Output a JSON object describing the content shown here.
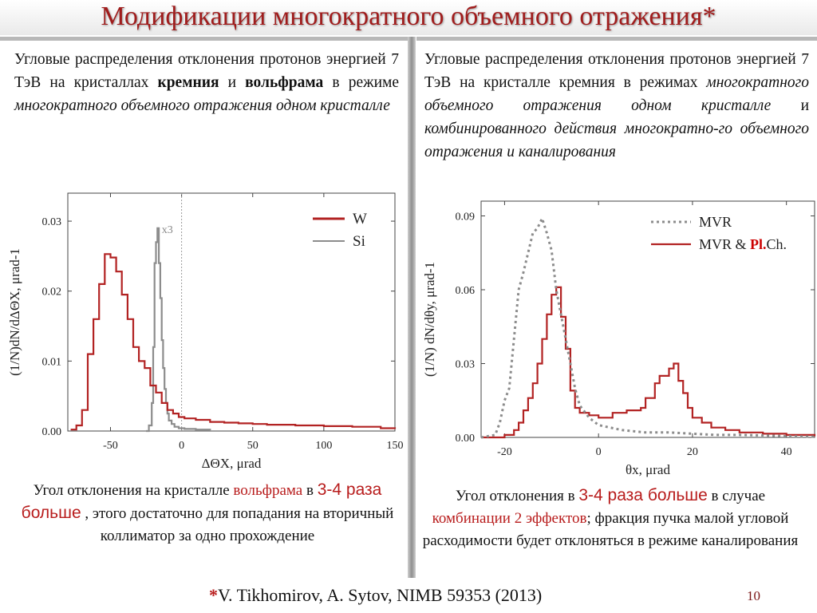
{
  "slide": {
    "title": "Модификации многократного объемного отражения*",
    "left": {
      "desc_1": "Угловые распределения отклонения протонов энергией 7 ТэВ на кристаллах ",
      "desc_b1": "кремния",
      "desc_2": " и ",
      "desc_b2": "вольфрама",
      "desc_3": " в режиме ",
      "desc_i1": "многократного объемного отражения одном кристалле",
      "cap_1": "Угол отклонения на кристалле ",
      "cap_r1": "вольфрама",
      "cap_2": " в ",
      "cap_r2": "3-4 раза больше",
      "cap_3": " , этого достаточно для попадания на вторичный коллиматор за одно прохождение"
    },
    "right": {
      "desc_1": "Угловые распределения отклонения протонов энергией 7 ТэВ на кристалле кремния в режимах ",
      "desc_i1": "многократного объемного отражения одном кристалле",
      "desc_2": " и ",
      "desc_i2": "комбинированного действия многократно-го объемного отражения и каналирования",
      "cap_1": "Угол отклонения в ",
      "cap_r1": "3-4 раза больше",
      "cap_2": " в случае ",
      "cap_r2": "комбинации 2 эффектов",
      "cap_3": "; фракция пучка малой угловой расходимости будет отклоняться в режиме каналирования"
    },
    "citation_star": "*",
    "citation": "V. Tikhomirov, A. Sytov,  NIMB 59353  (2013)",
    "page_number": "10"
  },
  "chart_data": [
    {
      "type": "line",
      "ylabel": "(1/N)dN/dΔΘX, μrad-1",
      "xlabel": "ΔΘX, μrad",
      "xlim": [
        -80,
        150
      ],
      "ylim": [
        0,
        0.034
      ],
      "xticks": [
        "-50",
        "0",
        "50",
        "100",
        "150"
      ],
      "xtick_values": [
        -50,
        0,
        50,
        100,
        150
      ],
      "yticks": [
        "0.00",
        "0.01",
        "0.02",
        "0.03"
      ],
      "ytick_values": [
        0,
        0.01,
        0.02,
        0.03
      ],
      "annotation": "x3",
      "series": [
        {
          "name": "W",
          "color": "#b22222",
          "style": "step",
          "x": [
            -78,
            -74,
            -70,
            -66,
            -62,
            -58,
            -54,
            -50,
            -46,
            -42,
            -38,
            -34,
            -30,
            -26,
            -22,
            -18,
            -14,
            -10,
            -6,
            -2,
            2,
            10,
            20,
            30,
            40,
            50,
            60,
            70,
            80,
            90,
            100,
            110,
            120,
            130,
            140,
            150
          ],
          "y": [
            0.0002,
            0.0008,
            0.003,
            0.011,
            0.016,
            0.021,
            0.0253,
            0.0248,
            0.0228,
            0.0195,
            0.016,
            0.012,
            0.01,
            0.009,
            0.0065,
            0.0055,
            0.004,
            0.003,
            0.0025,
            0.002,
            0.0018,
            0.0016,
            0.0013,
            0.0012,
            0.0011,
            0.001,
            0.0009,
            0.0009,
            0.0008,
            0.0008,
            0.0007,
            0.0007,
            0.0006,
            0.0006,
            0.0004,
            0.0003
          ]
        },
        {
          "name": "Si",
          "color": "#8c8c8c",
          "style": "step",
          "x": [
            -25,
            -23,
            -21,
            -20,
            -19,
            -18,
            -17,
            -16,
            -15,
            -14,
            -13,
            -12,
            -11,
            -10,
            -9,
            -7,
            -5,
            -2,
            2,
            10,
            20
          ],
          "y": [
            0.0,
            0.0008,
            0.004,
            0.012,
            0.024,
            0.027,
            0.029,
            0.024,
            0.019,
            0.013,
            0.009,
            0.006,
            0.004,
            0.0025,
            0.0015,
            0.001,
            0.0006,
            0.0004,
            0.0003,
            0.0002,
            0.0001
          ]
        }
      ]
    },
    {
      "type": "line",
      "ylabel": "(1/N) dN/dθy, μrad-1",
      "xlabel": "θx, μrad",
      "xlim": [
        -25,
        46
      ],
      "ylim": [
        0,
        0.096
      ],
      "xticks": [
        "-20",
        "0",
        "20",
        "40"
      ],
      "xtick_values": [
        -20,
        0,
        20,
        40
      ],
      "yticks": [
        "0.00",
        "0.03",
        "0.06",
        "0.09"
      ],
      "ytick_values": [
        0,
        0.03,
        0.06,
        0.09
      ],
      "legend_extra": "Pl.",
      "series": [
        {
          "name": "MVR",
          "color": "#8c8c8c",
          "style": "dotted",
          "x": [
            -25,
            -22,
            -21,
            -20,
            -19,
            -18,
            -17,
            -16,
            -15,
            -14,
            -13,
            -12,
            -11,
            -10,
            -9,
            -8,
            -7,
            -6,
            -5,
            -4,
            -2,
            0,
            5,
            10,
            15,
            20,
            25,
            30,
            35,
            40,
            46
          ],
          "y": [
            0.0,
            0.001,
            0.006,
            0.015,
            0.02,
            0.04,
            0.06,
            0.067,
            0.075,
            0.083,
            0.085,
            0.089,
            0.083,
            0.076,
            0.06,
            0.05,
            0.04,
            0.03,
            0.02,
            0.013,
            0.008,
            0.005,
            0.003,
            0.002,
            0.002,
            0.0015,
            0.001,
            0.001,
            0.0008,
            0.0005,
            0.0003
          ]
        },
        {
          "name": "MVR & Pl.Ch.",
          "color": "#b22222",
          "style": "step",
          "x": [
            -25,
            -20,
            -18,
            -17,
            -16,
            -15,
            -14,
            -13,
            -12,
            -11,
            -10,
            -9,
            -8,
            -7,
            -6,
            -5,
            -4,
            -2,
            0,
            3,
            6,
            9,
            10,
            12,
            13,
            14,
            15,
            16,
            17,
            18,
            19,
            20,
            22,
            24,
            27,
            30,
            35,
            40,
            46
          ],
          "y": [
            0.0,
            0.001,
            0.003,
            0.006,
            0.011,
            0.016,
            0.022,
            0.03,
            0.04,
            0.05,
            0.058,
            0.061,
            0.049,
            0.036,
            0.019,
            0.012,
            0.01,
            0.009,
            0.008,
            0.01,
            0.011,
            0.012,
            0.016,
            0.022,
            0.025,
            0.025,
            0.028,
            0.03,
            0.023,
            0.018,
            0.012,
            0.008,
            0.006,
            0.004,
            0.003,
            0.002,
            0.0015,
            0.001,
            0.0005
          ]
        }
      ]
    }
  ]
}
